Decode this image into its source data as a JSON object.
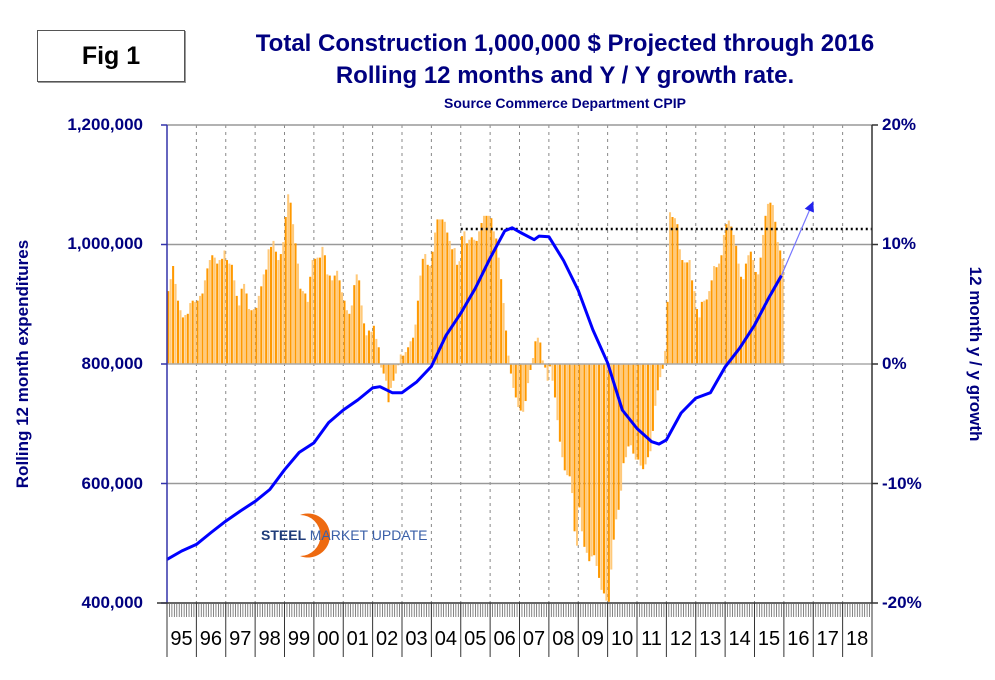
{
  "figure_label": "Fig 1",
  "colors": {
    "title": "#000080",
    "bars": "#FF9900",
    "bars_light": "#FFC97A",
    "line": "#0000FF",
    "projection": "#7777FF"
  },
  "logo": {
    "text_bold": "STEEL",
    "text_rest": "MARKET UPDATE"
  },
  "chart_data": {
    "type": "bar+line",
    "title": "Total Construction 1,000,000 $ Projected through 2016",
    "subtitle": "Rolling 12 months and Y / Y growth rate.",
    "source": "Source Commerce Department CPIP",
    "ylabel_left": "Rolling 12 month expenditures",
    "ylabel_right": "12 month y / y growth",
    "ylim_left": [
      400000,
      1200000
    ],
    "ylim_right": [
      -20,
      20
    ],
    "yticks_left": [
      "1,200,000",
      "1,000,000",
      "800,000",
      "600,000",
      "400,000"
    ],
    "yticks_right": [
      "20%",
      "10%",
      "0%",
      "-10%",
      "-20%"
    ],
    "xlim": [
      "1995-01",
      "2018-12"
    ],
    "xtick_labels": [
      "95",
      "96",
      "97",
      "98",
      "99",
      "00",
      "01",
      "02",
      "03",
      "04",
      "05",
      "06",
      "07",
      "08",
      "09",
      "10",
      "11",
      "12",
      "13",
      "14",
      "15",
      "16",
      "17",
      "18"
    ],
    "grid": {
      "horizontal": true,
      "vertical_dashed": true
    },
    "bars": {
      "axis": "right",
      "frequency": "monthly",
      "start": "1995-01",
      "values": [
        6.1,
        7.1,
        8.2,
        6.7,
        5.3,
        4.5,
        3.9,
        4.1,
        4.2,
        5.1,
        5.3,
        5.2,
        5.3,
        5.7,
        5.9,
        7.0,
        8.0,
        8.7,
        9.1,
        8.9,
        8.4,
        8.7,
        8.8,
        9.5,
        8.7,
        8.4,
        8.3,
        7.0,
        5.7,
        4.9,
        6.3,
        6.7,
        5.9,
        4.6,
        4.5,
        4.6,
        4.7,
        5.7,
        6.5,
        7.5,
        7.9,
        9.6,
        9.8,
        10.3,
        9.4,
        8.7,
        9.2,
        10.2,
        12.3,
        14.2,
        13.5,
        11.7,
        10.1,
        8.4,
        6.3,
        6.1,
        5.9,
        5.2,
        7.3,
        8.7,
        8.8,
        8.9,
        8.9,
        9.8,
        9.1,
        7.5,
        7.4,
        7.0,
        7.4,
        7.8,
        7.0,
        6.0,
        5.3,
        4.5,
        4.2,
        4.9,
        6.6,
        7.5,
        7.0,
        4.9,
        3.4,
        2.4,
        2.8,
        2.7,
        3.2,
        2.1,
        1.4,
        -0.3,
        -0.8,
        -1.4,
        -3.2,
        -2.0,
        -1.4,
        -0.8,
        -0.1,
        0.8,
        0.7,
        1.0,
        1.4,
        1.9,
        2.2,
        3.3,
        5.3,
        7.4,
        8.8,
        9.2,
        8.3,
        8.2,
        9.4,
        11.0,
        12.1,
        12.1,
        12.1,
        11.9,
        11.0,
        10.3,
        9.6,
        9.7,
        8.3,
        8.6,
        10.7,
        11.1,
        10.1,
        10.4,
        10.6,
        10.4,
        10.3,
        11.1,
        11.8,
        12.4,
        12.4,
        12.4,
        12.2,
        11.1,
        10.5,
        8.9,
        7.1,
        5.1,
        2.8,
        0.7,
        -0.8,
        -2.0,
        -2.8,
        -3.6,
        -3.9,
        -4.0,
        -3.1,
        -1.6,
        -0.5,
        0.5,
        1.9,
        2.2,
        1.8,
        0.3,
        -0.3,
        -1.4,
        -0.2,
        -1.4,
        -2.8,
        -4.7,
        -6.5,
        -7.8,
        -8.9,
        -9.3,
        -9.4,
        -10.8,
        -14.0,
        -15.2,
        -12.0,
        -14.0,
        -15.3,
        -15.8,
        -16.5,
        -16.1,
        -16.0,
        -16.9,
        -17.9,
        -18.9,
        -19.2,
        -19.8,
        -19.9,
        -17.2,
        -14.7,
        -13.0,
        -12.2,
        -10.6,
        -8.3,
        -7.8,
        -6.9,
        -6.8,
        -7.5,
        -8.0,
        -8.0,
        -8.5,
        -8.8,
        -8.4,
        -7.8,
        -7.3,
        -5.6,
        -3.5,
        -2.2,
        -1.1,
        -0.4,
        1.1,
        5.2,
        12.7,
        12.3,
        12.2,
        11.7,
        9.6,
        8.7,
        8.5,
        8.5,
        8.7,
        7.0,
        6.1,
        4.6,
        3.9,
        5.2,
        5.3,
        5.4,
        6.1,
        7.0,
        8.2,
        8.1,
        8.4,
        9.1,
        10.8,
        11.7,
        12.0,
        11.5,
        10.8,
        9.9,
        8.4,
        7.3,
        7.1,
        8.4,
        9.1,
        9.4,
        8.7,
        7.7,
        7.5,
        8.9,
        10.8,
        12.4,
        13.4,
        13.5,
        13.3,
        11.9,
        10.2,
        9.5,
        8.8
      ]
    },
    "line": {
      "axis": "left",
      "points": [
        [
          "1995-01",
          473000
        ],
        [
          "1995-07",
          487000
        ],
        [
          "1996-01",
          498000
        ],
        [
          "1996-07",
          518000
        ],
        [
          "1997-01",
          537000
        ],
        [
          "1997-07",
          554000
        ],
        [
          "1998-01",
          570000
        ],
        [
          "1998-07",
          590000
        ],
        [
          "1999-01",
          623000
        ],
        [
          "1999-07",
          652000
        ],
        [
          "2000-01",
          668000
        ],
        [
          "2000-07",
          702000
        ],
        [
          "2001-01",
          723000
        ],
        [
          "2001-07",
          740000
        ],
        [
          "2002-01",
          760000
        ],
        [
          "2002-04",
          762000
        ],
        [
          "2002-09",
          752000
        ],
        [
          "2003-01",
          752000
        ],
        [
          "2003-07",
          770000
        ],
        [
          "2004-01",
          796000
        ],
        [
          "2004-07",
          848000
        ],
        [
          "2005-01",
          885000
        ],
        [
          "2005-07",
          927000
        ],
        [
          "2006-01",
          977000
        ],
        [
          "2006-07",
          1023000
        ],
        [
          "2006-10",
          1028000
        ],
        [
          "2007-01",
          1021000
        ],
        [
          "2007-07",
          1008000
        ],
        [
          "2007-09",
          1014000
        ],
        [
          "2008-01",
          1013000
        ],
        [
          "2008-07",
          973000
        ],
        [
          "2009-01",
          923000
        ],
        [
          "2009-07",
          857000
        ],
        [
          "2010-01",
          802000
        ],
        [
          "2010-07",
          723000
        ],
        [
          "2011-01",
          692000
        ],
        [
          "2011-07",
          670000
        ],
        [
          "2011-10",
          666000
        ],
        [
          "2012-01",
          673000
        ],
        [
          "2012-07",
          718000
        ],
        [
          "2013-01",
          743000
        ],
        [
          "2013-07",
          752000
        ],
        [
          "2014-01",
          795000
        ],
        [
          "2014-07",
          827000
        ],
        [
          "2015-01",
          865000
        ],
        [
          "2015-07",
          912000
        ],
        [
          "2015-12",
          948000
        ]
      ]
    },
    "projection": {
      "from": [
        "2015-12",
        948000
      ],
      "to": [
        "2017-01",
        1072000
      ]
    },
    "reference_line": {
      "value": 1026000,
      "from": "2005-01",
      "to": "2018-12",
      "style": "dotted"
    }
  }
}
